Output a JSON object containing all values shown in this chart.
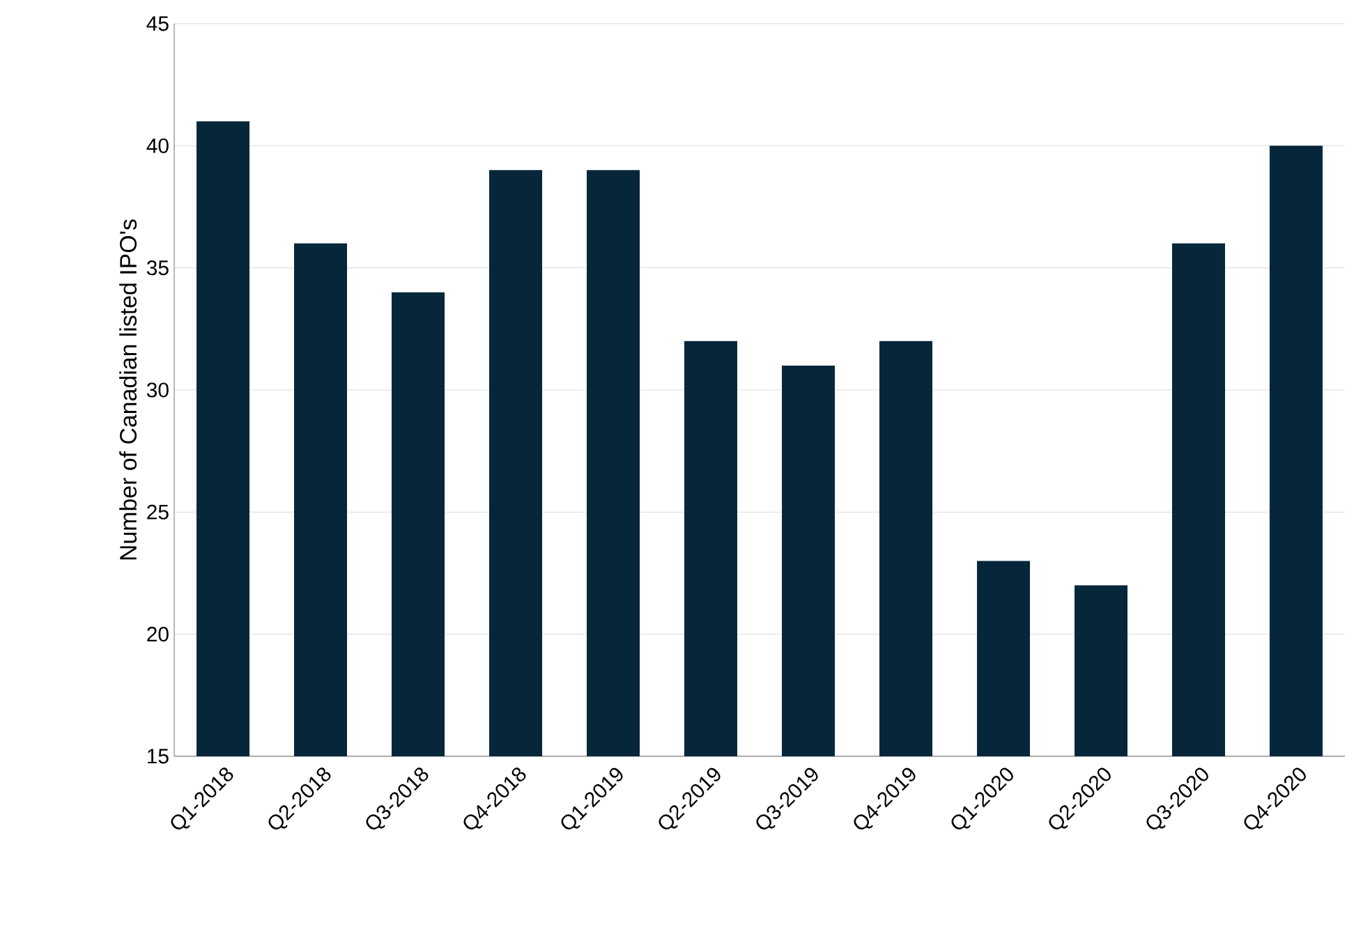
{
  "chart_data": {
    "type": "bar",
    "ylabel": "Number of Canadian listed IPO's",
    "categories": [
      "Q1-2018",
      "Q2-2018",
      "Q3-2018",
      "Q4-2018",
      "Q1-2019",
      "Q2-2019",
      "Q3-2019",
      "Q4-2019",
      "Q1-2020",
      "Q2-2020",
      "Q3-2020",
      "Q4-2020"
    ],
    "values": [
      41,
      36,
      34,
      39,
      39,
      32,
      31,
      32,
      23,
      22,
      36,
      40
    ],
    "color": "#06263a",
    "ylim": [
      15,
      45
    ],
    "yticks": [
      15,
      20,
      25,
      30,
      35,
      40,
      45
    ],
    "grid": "y"
  }
}
